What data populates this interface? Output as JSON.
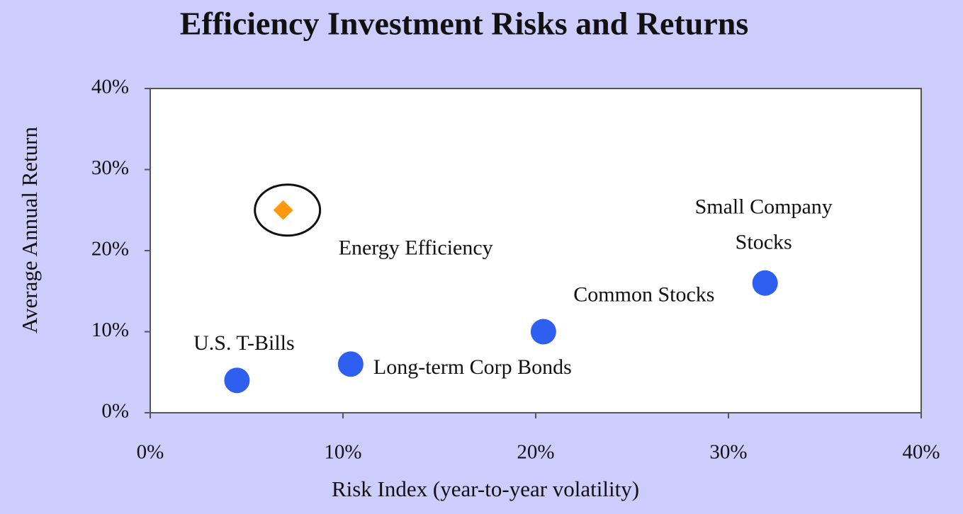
{
  "chart_data": {
    "type": "scatter",
    "title": "Efficiency Investment Risks and Returns",
    "x_label": "Risk Index (year-to-year volatility)",
    "y_label": "Average Annual Return",
    "xlim": [
      0,
      40
    ],
    "ylim": [
      0,
      40
    ],
    "xticks": [
      {
        "value": 0,
        "label": "0%"
      },
      {
        "value": 10,
        "label": "10%"
      },
      {
        "value": 20,
        "label": "20%"
      },
      {
        "value": 30,
        "label": "30%"
      },
      {
        "value": 40,
        "label": "40%"
      }
    ],
    "yticks": [
      {
        "value": 0,
        "label": "0%"
      },
      {
        "value": 10,
        "label": "10%"
      },
      {
        "value": 20,
        "label": "20%"
      },
      {
        "value": 30,
        "label": "30%"
      },
      {
        "value": 40,
        "label": "40%"
      }
    ],
    "points": [
      {
        "label": [
          "U.S. T-Bills"
        ],
        "x": 4.5,
        "y": 4.0,
        "color": "#2f5ff0",
        "marker": "circle"
      },
      {
        "label": [
          "Long-term Corp Bonds"
        ],
        "x": 10.4,
        "y": 6.0,
        "color": "#2f5ff0",
        "marker": "circle"
      },
      {
        "label": [
          "Common Stocks"
        ],
        "x": 20.4,
        "y": 10.0,
        "color": "#2f5ff0",
        "marker": "circle"
      },
      {
        "label": [
          "Small Company",
          "Stocks"
        ],
        "x": 31.9,
        "y": 16.0,
        "color": "#2f5ff0",
        "marker": "circle"
      },
      {
        "label": [
          "Energy Efficiency"
        ],
        "x": 6.9,
        "y": 25.0,
        "color": "#ff9a10",
        "marker": "diamond",
        "highlight": true
      }
    ]
  }
}
